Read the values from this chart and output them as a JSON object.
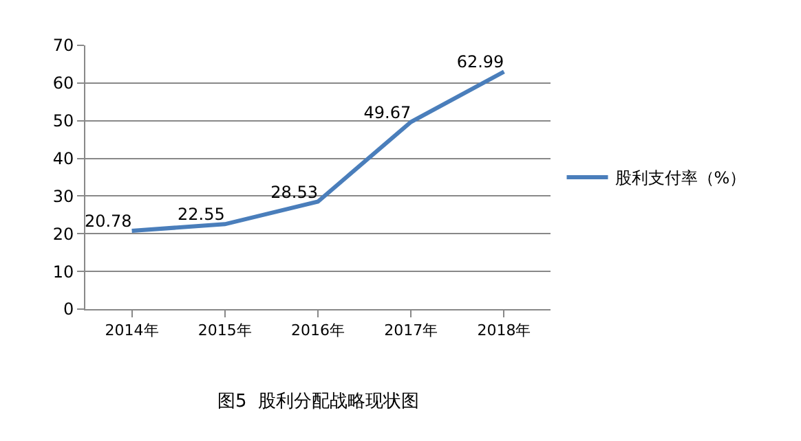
{
  "chart_data": {
    "type": "line",
    "title": "图5  股利分配战略现状图",
    "categories": [
      "2014年",
      "2015年",
      "2016年",
      "2017年",
      "2018年"
    ],
    "series": [
      {
        "name": "股利支付率（%）",
        "color": "#4a7ebb",
        "values": [
          20.78,
          22.55,
          28.53,
          49.67,
          62.99
        ]
      }
    ],
    "ylim": [
      0,
      70
    ],
    "yticks": [
      0,
      10,
      20,
      30,
      40,
      50,
      60,
      70
    ],
    "grid": "y",
    "legend": "right",
    "marker": "none",
    "line_style": "solid",
    "data_labels": true
  }
}
